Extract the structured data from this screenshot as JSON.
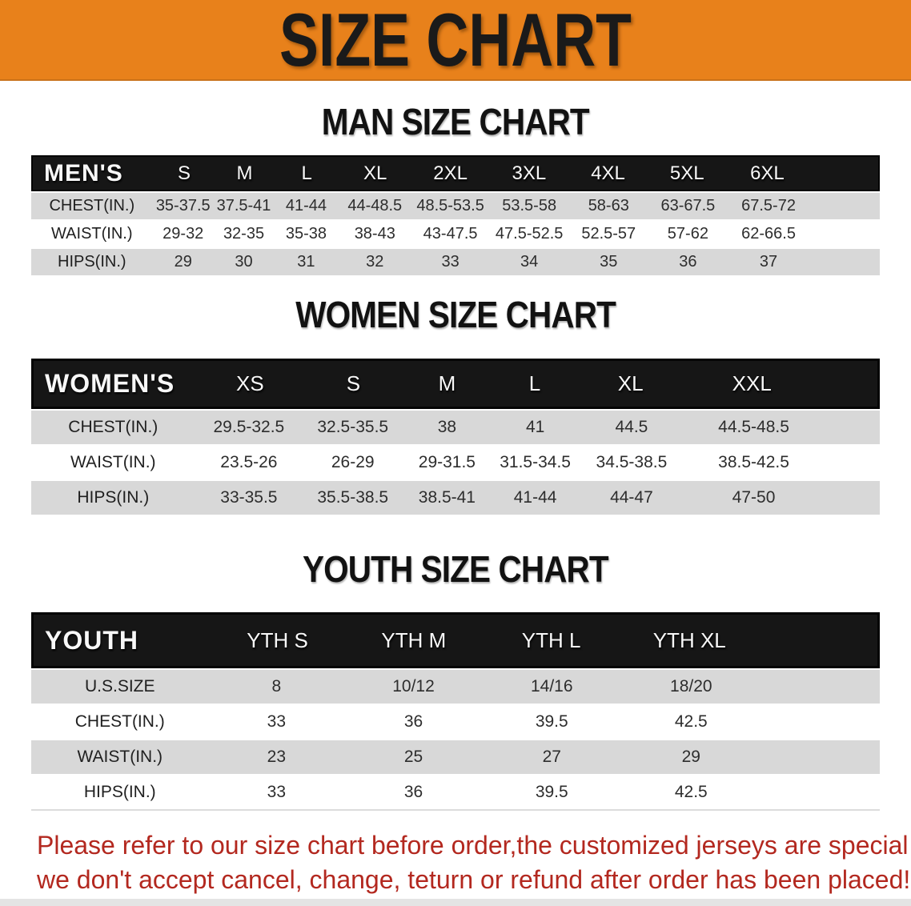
{
  "banner": {
    "title": "SIZE CHART"
  },
  "sections": {
    "men": {
      "title": "MAN SIZE CHART",
      "group_label": "MEN'S",
      "columns": [
        "S",
        "M",
        "L",
        "XL",
        "2XL",
        "3XL",
        "4XL",
        "5XL",
        "6XL"
      ],
      "rows": [
        {
          "label": "CHEST(IN.)",
          "values": [
            "35-37.5",
            "37.5-41",
            "41-44",
            "44-48.5",
            "48.5-53.5",
            "53.5-58",
            "58-63",
            "63-67.5",
            "67.5-72"
          ]
        },
        {
          "label": "WAIST(IN.)",
          "values": [
            "29-32",
            "32-35",
            "35-38",
            "38-43",
            "43-47.5",
            "47.5-52.5",
            "52.5-57",
            "57-62",
            "62-66.5"
          ]
        },
        {
          "label": "HIPS(IN.)",
          "values": [
            "29",
            "30",
            "31",
            "32",
            "33",
            "34",
            "35",
            "36",
            "37"
          ]
        }
      ]
    },
    "women": {
      "title": "WOMEN SIZE CHART",
      "group_label": "WOMEN'S",
      "columns": [
        "XS",
        "S",
        "M",
        "L",
        "XL",
        "XXL"
      ],
      "rows": [
        {
          "label": "CHEST(IN.)",
          "values": [
            "29.5-32.5",
            "32.5-35.5",
            "38",
            "41",
            "44.5",
            "44.5-48.5"
          ]
        },
        {
          "label": "WAIST(IN.)",
          "values": [
            "23.5-26",
            "26-29",
            "29-31.5",
            "31.5-34.5",
            "34.5-38.5",
            "38.5-42.5"
          ]
        },
        {
          "label": "HIPS(IN.)",
          "values": [
            "33-35.5",
            "35.5-38.5",
            "38.5-41",
            "41-44",
            "44-47",
            "47-50"
          ]
        }
      ]
    },
    "youth": {
      "title": "YOUTH SIZE CHART",
      "group_label": "YOUTH",
      "columns": [
        "YTH S",
        "YTH M",
        "YTH L",
        "YTH XL"
      ],
      "rows": [
        {
          "label": "U.S.SIZE",
          "values": [
            "8",
            "10/12",
            "14/16",
            "18/20"
          ]
        },
        {
          "label": "CHEST(IN.)",
          "values": [
            "33",
            "36",
            "39.5",
            "42.5"
          ]
        },
        {
          "label": "WAIST(IN.)",
          "values": [
            "23",
            "25",
            "27",
            "29"
          ]
        },
        {
          "label": "HIPS(IN.)",
          "values": [
            "33",
            "36",
            "39.5",
            "42.5"
          ]
        }
      ]
    }
  },
  "disclaimer": {
    "line1": "Please refer to our size chart before order,the customized jerseys are special products,",
    "line2": "we don't accept cancel, change, teturn or refund after order has been placed!"
  },
  "colors": {
    "banner_bg": "#e8811b",
    "table_header_bg": "#161616",
    "row_alt_bg": "#d8d8d8",
    "disclaimer_red": "#b3281f",
    "bottom_strip": "#e4e4e4"
  }
}
